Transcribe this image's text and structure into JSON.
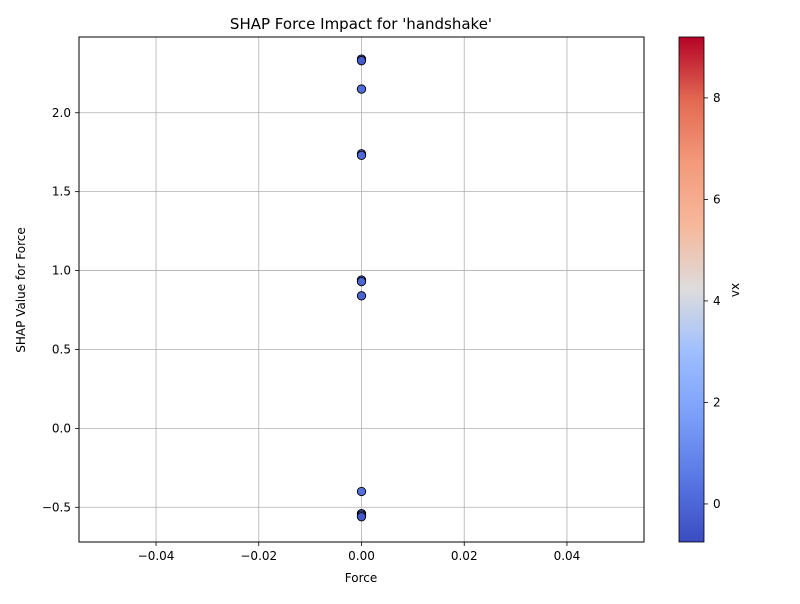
{
  "chart_data": {
    "type": "scatter",
    "title": "SHAP Force Impact for 'handshake'",
    "xlabel": "Force",
    "ylabel": "SHAP Value for Force",
    "xlim": [
      -0.055,
      0.055
    ],
    "ylim": [
      -0.72,
      2.48
    ],
    "xticks": [
      -0.04,
      -0.02,
      0.0,
      0.02,
      0.04
    ],
    "xtick_labels": [
      "−0.04",
      "−0.02",
      "0.00",
      "0.02",
      "0.04"
    ],
    "yticks": [
      -0.5,
      0.0,
      0.5,
      1.0,
      1.5,
      2.0
    ],
    "ytick_labels": [
      "−0.5",
      "0.0",
      "0.5",
      "1.0",
      "1.5",
      "2.0"
    ],
    "grid": true,
    "legend": "none",
    "points": [
      {
        "x": 0.0,
        "y": 2.34,
        "c": -0.45
      },
      {
        "x": 0.0,
        "y": 2.33,
        "c": -0.3
      },
      {
        "x": 0.0,
        "y": 2.15,
        "c": 0.2
      },
      {
        "x": 0.0,
        "y": 1.74,
        "c": -0.2
      },
      {
        "x": 0.0,
        "y": 1.73,
        "c": 0.1
      },
      {
        "x": 0.0,
        "y": 0.94,
        "c": -0.3
      },
      {
        "x": 0.0,
        "y": 0.93,
        "c": 0.0
      },
      {
        "x": 0.0,
        "y": 0.84,
        "c": -0.1
      },
      {
        "x": 0.0,
        "y": -0.4,
        "c": 0.3
      },
      {
        "x": 0.0,
        "y": -0.54,
        "c": -0.2
      },
      {
        "x": 0.0,
        "y": -0.55,
        "c": 0.1
      },
      {
        "x": 0.0,
        "y": -0.56,
        "c": -0.4
      }
    ],
    "colorbar": {
      "label": "vx",
      "cmap": "coolwarm",
      "range": [
        -0.75,
        9.2
      ],
      "ticks": [
        0,
        2,
        4,
        6,
        8
      ],
      "tick_labels": [
        "0",
        "2",
        "4",
        "6",
        "8"
      ]
    }
  }
}
